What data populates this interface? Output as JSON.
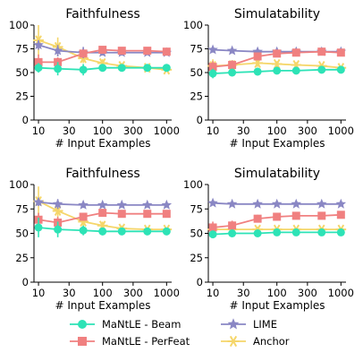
{
  "colors": {
    "MaNtLE - Beam": "#2de3b6",
    "MaNtLE - PerFeat": "#f08080",
    "LIME": "#8a87c4",
    "Anchor": "#f5d66a"
  },
  "legend": {
    "items": [
      {
        "name": "MaNtLE - Beam",
        "marker": "circle"
      },
      {
        "name": "MaNtLE - PerFeat",
        "marker": "square"
      },
      {
        "name": "LIME",
        "marker": "star"
      },
      {
        "name": "Anchor",
        "marker": "asterisk"
      }
    ]
  },
  "chart_data": [
    {
      "type": "line",
      "title": "Faithfulness",
      "xlabel": "# Input Examples",
      "ylabel": "",
      "xscale": "log",
      "xticks": [
        "10",
        "30",
        "100",
        "300",
        "1000"
      ],
      "yticks": [
        "0",
        "25",
        "50",
        "75",
        "100"
      ],
      "ylim": [
        0,
        100
      ],
      "x": [
        10,
        20,
        50,
        100,
        200,
        500,
        1000
      ],
      "series": [
        {
          "name": "MaNtLE - Beam",
          "values": [
            55,
            54,
            53,
            55,
            55,
            55,
            55
          ],
          "err": [
            5,
            7,
            6,
            4,
            3,
            2,
            2
          ]
        },
        {
          "name": "MaNtLE - PerFeat",
          "values": [
            61,
            61,
            70,
            74,
            73,
            73,
            72
          ],
          "err": [
            8,
            5,
            4,
            3,
            2,
            2,
            2
          ]
        },
        {
          "name": "LIME",
          "values": [
            79,
            73,
            71,
            71,
            71,
            71,
            71
          ],
          "err": [
            5,
            6,
            6,
            3,
            3,
            2,
            2
          ]
        },
        {
          "name": "Anchor",
          "values": [
            84,
            77,
            65,
            60,
            57,
            55,
            53
          ],
          "err": [
            16,
            10,
            5,
            4,
            3,
            2,
            2
          ]
        }
      ]
    },
    {
      "type": "line",
      "title": "Simulatability",
      "xlabel": "# Input Examples",
      "ylabel": "",
      "xscale": "log",
      "xticks": [
        "10",
        "30",
        "100",
        "300",
        "1000"
      ],
      "yticks": [
        "0",
        "25",
        "50",
        "75",
        "100"
      ],
      "ylim": [
        0,
        100
      ],
      "x": [
        10,
        20,
        50,
        100,
        200,
        500,
        1000
      ],
      "series": [
        {
          "name": "MaNtLE - Beam",
          "values": [
            49,
            50,
            51,
            52,
            52,
            53,
            53
          ],
          "err": [
            5,
            4,
            4,
            3,
            3,
            2,
            2
          ]
        },
        {
          "name": "MaNtLE - PerFeat",
          "values": [
            56,
            58,
            67,
            70,
            71,
            72,
            71
          ],
          "err": [
            6,
            5,
            4,
            3,
            2,
            2,
            2
          ]
        },
        {
          "name": "LIME",
          "values": [
            74,
            73,
            72,
            72,
            72,
            72,
            72
          ],
          "err": [
            3,
            2,
            2,
            2,
            2,
            2,
            2
          ]
        },
        {
          "name": "Anchor",
          "values": [
            57,
            58,
            60,
            59,
            58,
            57,
            55
          ],
          "err": [
            7,
            5,
            4,
            3,
            3,
            2,
            2
          ]
        }
      ]
    },
    {
      "type": "line",
      "title": "Faithfulness",
      "xlabel": "# Input Examples",
      "ylabel": "",
      "xscale": "log",
      "xticks": [
        "10",
        "30",
        "100",
        "300",
        "1000"
      ],
      "yticks": [
        "0",
        "25",
        "50",
        "75",
        "100"
      ],
      "ylim": [
        0,
        100
      ],
      "x": [
        10,
        20,
        50,
        100,
        200,
        500,
        1000
      ],
      "series": [
        {
          "name": "MaNtLE - Beam",
          "values": [
            56,
            54,
            53,
            52,
            52,
            52,
            52
          ],
          "err": [
            10,
            8,
            5,
            4,
            3,
            2,
            2
          ]
        },
        {
          "name": "MaNtLE - PerFeat",
          "values": [
            64,
            61,
            67,
            71,
            70,
            70,
            70
          ],
          "err": [
            7,
            6,
            4,
            3,
            3,
            2,
            2
          ]
        },
        {
          "name": "LIME",
          "values": [
            82,
            80,
            79,
            79,
            79,
            79,
            79
          ],
          "err": [
            4,
            5,
            3,
            2,
            2,
            2,
            2
          ]
        },
        {
          "name": "Anchor",
          "values": [
            83,
            73,
            62,
            58,
            55,
            54,
            54
          ],
          "err": [
            15,
            10,
            5,
            4,
            3,
            2,
            2
          ]
        }
      ]
    },
    {
      "type": "line",
      "title": "Simulatability",
      "xlabel": "# Input Examples",
      "ylabel": "",
      "xscale": "log",
      "xticks": [
        "10",
        "30",
        "100",
        "300",
        "1000"
      ],
      "yticks": [
        "0",
        "25",
        "50",
        "75",
        "100"
      ],
      "ylim": [
        0,
        100
      ],
      "x": [
        10,
        20,
        50,
        100,
        200,
        500,
        1000
      ],
      "series": [
        {
          "name": "MaNtLE - Beam",
          "values": [
            49,
            50,
            50,
            51,
            51,
            51,
            51
          ],
          "err": [
            3,
            3,
            2,
            2,
            2,
            2,
            2
          ]
        },
        {
          "name": "MaNtLE - PerFeat",
          "values": [
            56,
            58,
            65,
            67,
            68,
            68,
            69
          ],
          "err": [
            6,
            5,
            4,
            3,
            2,
            2,
            2
          ]
        },
        {
          "name": "LIME",
          "values": [
            81,
            80,
            80,
            80,
            80,
            80,
            80
          ],
          "err": [
            2,
            2,
            2,
            2,
            2,
            2,
            2
          ]
        },
        {
          "name": "Anchor",
          "values": [
            54,
            54,
            54,
            54,
            54,
            54,
            54
          ],
          "err": [
            5,
            3,
            3,
            2,
            2,
            2,
            2
          ]
        }
      ]
    }
  ]
}
